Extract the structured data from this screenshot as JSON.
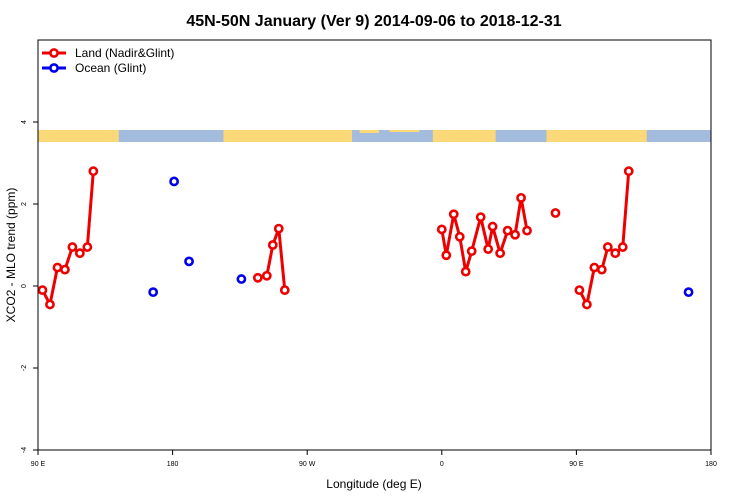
{
  "chart_data": {
    "type": "line",
    "title": "45N-50N January (Ver 9)   2014-09-06 to 2018-12-31",
    "xlabel": "Longitude (deg E)",
    "ylabel": "XCO2 - MLO trend (ppm)",
    "xlim": [
      90,
      540
    ],
    "ylim": [
      -4,
      6
    ],
    "x_ticks": [
      {
        "value": 90,
        "label": "90 E"
      },
      {
        "value": 180,
        "label": "180"
      },
      {
        "value": 270,
        "label": "90 W"
      },
      {
        "value": 360,
        "label": "0"
      },
      {
        "value": 450,
        "label": "90 E"
      },
      {
        "value": 540,
        "label": "180"
      }
    ],
    "y_ticks": [
      {
        "value": -4,
        "label": "-4"
      },
      {
        "value": -2,
        "label": "-2"
      },
      {
        "value": 0,
        "label": "0"
      },
      {
        "value": 2,
        "label": "2"
      },
      {
        "value": 4,
        "label": "4"
      }
    ],
    "legend": {
      "position": "top-left",
      "entries": [
        {
          "name": "Land (Nadir&Glint)",
          "color": "#ee0000"
        },
        {
          "name": "Ocean (Glint)",
          "color": "#0000ee"
        }
      ]
    },
    "land_mask_colors": {
      "land": "#fbd878",
      "ocean": "#a3bbdc"
    },
    "series": [
      {
        "name": "Land (Nadir&Glint)",
        "color": "#ee0000",
        "segments": [
          [
            [
              93,
              -0.1
            ],
            [
              98,
              -0.45
            ],
            [
              103,
              0.45
            ],
            [
              108,
              0.4
            ],
            [
              113,
              0.95
            ],
            [
              118,
              0.8
            ],
            [
              123,
              0.95
            ],
            [
              127,
              2.8
            ]
          ],
          [
            [
              237,
              0.2
            ],
            [
              243,
              0.25
            ],
            [
              247,
              1.0
            ],
            [
              251,
              1.4
            ],
            [
              255,
              -0.1
            ]
          ],
          [
            [
              360,
              1.38
            ],
            [
              363,
              0.75
            ],
            [
              368,
              1.75
            ],
            [
              372,
              1.2
            ],
            [
              376,
              0.35
            ],
            [
              380,
              0.85
            ],
            [
              386,
              1.68
            ],
            [
              391,
              0.9
            ],
            [
              394,
              1.45
            ],
            [
              399,
              0.8
            ],
            [
              404,
              1.35
            ],
            [
              409,
              1.25
            ],
            [
              413,
              2.15
            ],
            [
              417,
              1.35
            ]
          ],
          [
            [
              436,
              1.78
            ]
          ],
          [
            [
              452,
              -0.1
            ],
            [
              457,
              -0.45
            ],
            [
              462,
              0.45
            ],
            [
              467,
              0.4
            ],
            [
              471,
              0.95
            ],
            [
              476,
              0.8
            ],
            [
              481,
              0.95
            ],
            [
              485,
              2.8
            ]
          ]
        ]
      },
      {
        "name": "Ocean (Glint)",
        "color": "#0000ee",
        "points": [
          [
            167,
            -0.15
          ],
          [
            181,
            2.55
          ],
          [
            191,
            0.6
          ],
          [
            226,
            0.17
          ],
          [
            525,
            -0.15
          ]
        ]
      }
    ]
  }
}
